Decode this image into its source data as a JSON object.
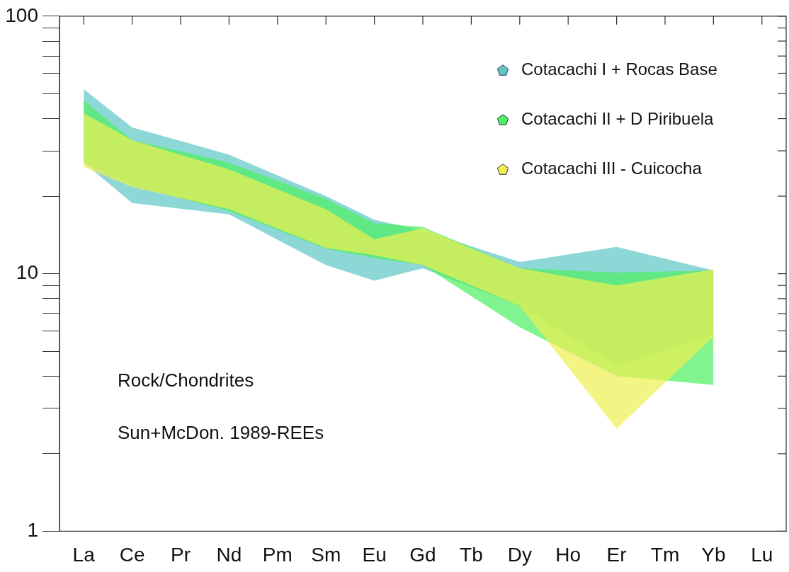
{
  "chart_data": {
    "type": "area",
    "categories": [
      "La",
      "Ce",
      "Pr",
      "Nd",
      "Pm",
      "Sm",
      "Eu",
      "Gd",
      "Tb",
      "Dy",
      "Ho",
      "Er",
      "Tm",
      "Yb",
      "Lu"
    ],
    "series": [
      {
        "name": "Cotacachi I + Rocas Base",
        "color": "#5cc8c4",
        "values": [
          null,
          null,
          null,
          null,
          null,
          null,
          null,
          null,
          null,
          null,
          null,
          null,
          null,
          null,
          null
        ],
        "lower": [
          27,
          18.8,
          null,
          17,
          null,
          10.8,
          9.4,
          10.5,
          null,
          7.5,
          null,
          4.4,
          null,
          5.8,
          null
        ],
        "upper": [
          52,
          37,
          null,
          29,
          null,
          20,
          16.2,
          14.7,
          null,
          11.1,
          null,
          12.7,
          null,
          10.3,
          null
        ]
      },
      {
        "name": "Cotacachi II + D Piribuela",
        "color": "#4cf060",
        "values": [
          null,
          null,
          null,
          null,
          null,
          null,
          null,
          null,
          null,
          null,
          null,
          null,
          null,
          null,
          null
        ],
        "lower": [
          27,
          22,
          null,
          17.5,
          null,
          12.5,
          11.5,
          10.8,
          null,
          6.2,
          null,
          4,
          null,
          3.7,
          null
        ],
        "upper": [
          47,
          33,
          null,
          27,
          null,
          19.5,
          15.7,
          15.2,
          null,
          10.5,
          null,
          10.1,
          null,
          10.3,
          null
        ]
      },
      {
        "name": "Cotacachi III - Cuicocha",
        "color": "#f0f050",
        "values": [
          null,
          null,
          null,
          null,
          null,
          null,
          null,
          null,
          null,
          null,
          null,
          null,
          null,
          null,
          null
        ],
        "lower": [
          26,
          21.7,
          null,
          17.8,
          null,
          12.6,
          11.8,
          10.8,
          null,
          7.5,
          null,
          2.5,
          null,
          5.7,
          null
        ],
        "upper": [
          42,
          33,
          null,
          25.4,
          null,
          17.8,
          13.6,
          15,
          null,
          10.5,
          null,
          9,
          null,
          10.4,
          null
        ]
      }
    ],
    "log": "y",
    "ylim": [
      1,
      100
    ],
    "yticks": [
      1,
      {
        "value": 2,
        "label": null
      },
      {
        "value": 3,
        "label": null
      },
      {
        "value": 4,
        "label": null
      },
      {
        "value": 5,
        "label": null
      },
      {
        "value": 6,
        "label": null
      },
      {
        "value": 7,
        "label": null
      },
      {
        "value": 8,
        "label": null
      },
      {
        "value": 9,
        "label": null
      },
      10,
      {
        "value": 20,
        "label": null
      },
      {
        "value": 30,
        "label": null
      },
      {
        "value": 40,
        "label": null
      },
      {
        "value": 50,
        "label": null
      },
      {
        "value": 60,
        "label": null
      },
      {
        "value": 70,
        "label": null
      },
      {
        "value": 80,
        "label": null
      },
      {
        "value": 90,
        "label": null
      },
      100
    ],
    "marker": "none",
    "legend": "top right",
    "grid": false,
    "annotations": [
      "Rock/Chondrites",
      "Sun+McDon. 1989-REEs"
    ]
  }
}
